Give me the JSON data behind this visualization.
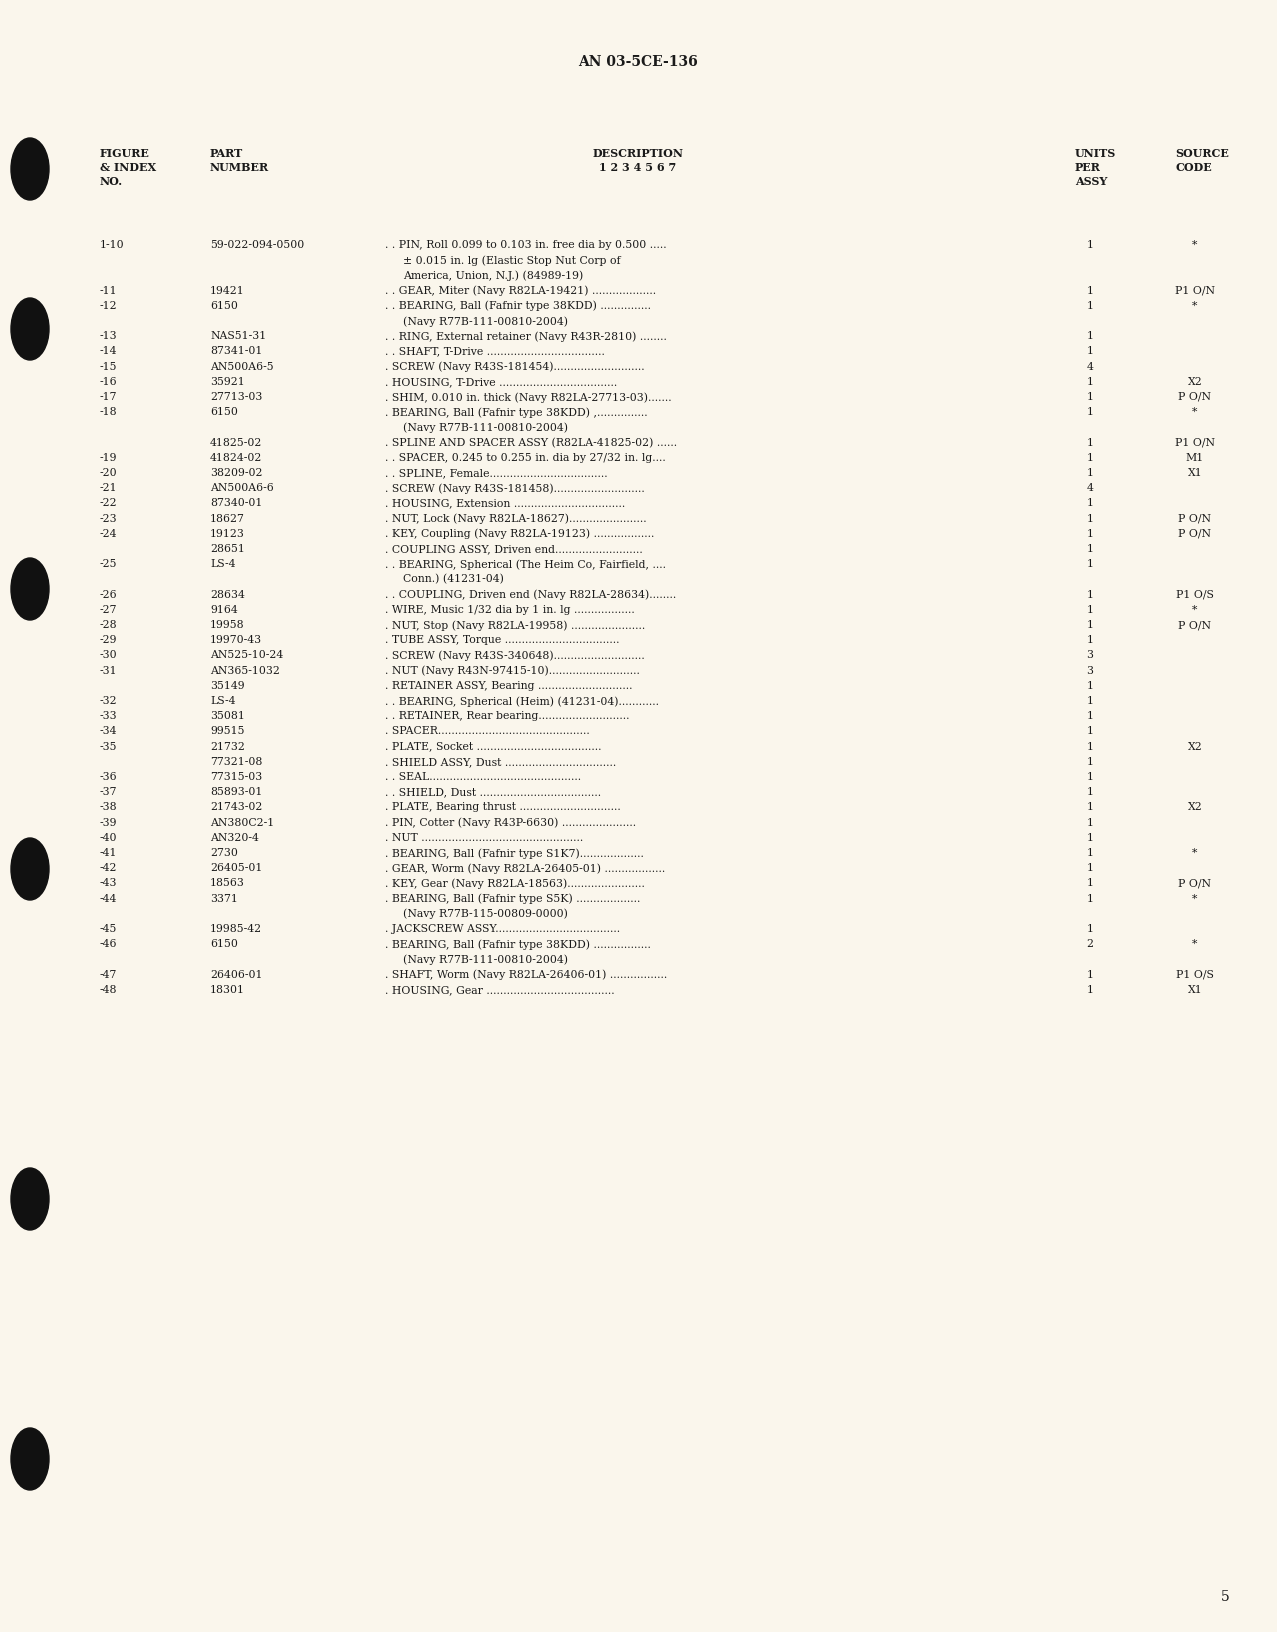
{
  "page_title": "AN 03-5CE-136",
  "page_number": "5",
  "bg_color": "#faf6ec",
  "text_color": "#1a1a1a",
  "rows": [
    {
      "index": "1-10",
      "part": "59-022-094-0500",
      "desc": ". . PIN, Roll 0.099 to 0.103 in. free dia by 0.500 .....",
      "desc2": "  ± 0.015 in. lg (Elastic Stop Nut Corp of",
      "desc3": "  America, Union, N.J.) (84989-19)",
      "units": "1",
      "source": "*"
    },
    {
      "index": "-11",
      "part": "19421",
      "desc": ". . GEAR, Miter (Navy R82LA-19421) ...................",
      "desc2": "",
      "desc3": "",
      "units": "1",
      "source": "P1 O/N"
    },
    {
      "index": "-12",
      "part": "6150",
      "desc": ". . BEARING, Ball (Fafnir type 38KDD) ...............",
      "desc2": "  (Navy R77B-111-00810-2004)",
      "desc3": "",
      "units": "1",
      "source": "*"
    },
    {
      "index": "-13",
      "part": "NAS51-31",
      "desc": ". . RING, External retainer (Navy R43R-2810) ........",
      "desc2": "",
      "desc3": "",
      "units": "1",
      "source": ""
    },
    {
      "index": "-14",
      "part": "87341-01",
      "desc": ". . SHAFT, T-Drive ...................................",
      "desc2": "",
      "desc3": "",
      "units": "1",
      "source": ""
    },
    {
      "index": "-15",
      "part": "AN500A6-5",
      "desc": ". SCREW (Navy R43S-181454)...........................",
      "desc2": "",
      "desc3": "",
      "units": "4",
      "source": ""
    },
    {
      "index": "-16",
      "part": "35921",
      "desc": ". HOUSING, T-Drive ...................................",
      "desc2": "",
      "desc3": "",
      "units": "1",
      "source": "X2"
    },
    {
      "index": "-17",
      "part": "27713-03",
      "desc": ". SHIM, 0.010 in. thick (Navy R82LA-27713-03).......",
      "desc2": "",
      "desc3": "",
      "units": "1",
      "source": "P O/N"
    },
    {
      "index": "-18",
      "part": "6150",
      "desc": ". BEARING, Ball (Fafnir type 38KDD) ,...............",
      "desc2": "  (Navy R77B-111-00810-2004)",
      "desc3": "",
      "units": "1",
      "source": "*"
    },
    {
      "index": "",
      "part": "41825-02",
      "desc": ". SPLINE AND SPACER ASSY (R82LA-41825-02) ......",
      "desc2": "",
      "desc3": "",
      "units": "1",
      "source": "P1 O/N"
    },
    {
      "index": "-19",
      "part": "41824-02",
      "desc": ". . SPACER, 0.245 to 0.255 in. dia by 27/32 in. lg....",
      "desc2": "",
      "desc3": "",
      "units": "1",
      "source": "M1"
    },
    {
      "index": "-20",
      "part": "38209-02",
      "desc": ". . SPLINE, Female...................................",
      "desc2": "",
      "desc3": "",
      "units": "1",
      "source": "X1"
    },
    {
      "index": "-21",
      "part": "AN500A6-6",
      "desc": ". SCREW (Navy R43S-181458)...........................",
      "desc2": "",
      "desc3": "",
      "units": "4",
      "source": ""
    },
    {
      "index": "-22",
      "part": "87340-01",
      "desc": ". HOUSING, Extension .................................",
      "desc2": "",
      "desc3": "",
      "units": "1",
      "source": ""
    },
    {
      "index": "-23",
      "part": "18627",
      "desc": ". NUT, Lock (Navy R82LA-18627).......................",
      "desc2": "",
      "desc3": "",
      "units": "1",
      "source": "P O/N"
    },
    {
      "index": "-24",
      "part": "19123",
      "desc": ". KEY, Coupling (Navy R82LA-19123) ..................",
      "desc2": "",
      "desc3": "",
      "units": "1",
      "source": "P O/N"
    },
    {
      "index": "",
      "part": "28651",
      "desc": ". COUPLING ASSY, Driven end..........................",
      "desc2": "",
      "desc3": "",
      "units": "1",
      "source": ""
    },
    {
      "index": "-25",
      "part": "LS-4",
      "desc": ". . BEARING, Spherical (The Heim Co, Fairfield, ....",
      "desc2": "  Conn.) (41231-04)",
      "desc3": "",
      "units": "1",
      "source": ""
    },
    {
      "index": "-26",
      "part": "28634",
      "desc": ". . COUPLING, Driven end (Navy R82LA-28634)........",
      "desc2": "",
      "desc3": "",
      "units": "1",
      "source": "P1 O/S"
    },
    {
      "index": "-27",
      "part": "9164",
      "desc": ". WIRE, Music 1/32 dia by 1 in. lg ..................",
      "desc2": "",
      "desc3": "",
      "units": "1",
      "source": "*"
    },
    {
      "index": "-28",
      "part": "19958",
      "desc": ". NUT, Stop (Navy R82LA-19958) ......................",
      "desc2": "",
      "desc3": "",
      "units": "1",
      "source": "P O/N"
    },
    {
      "index": "-29",
      "part": "19970-43",
      "desc": ". TUBE ASSY, Torque ..................................",
      "desc2": "",
      "desc3": "",
      "units": "1",
      "source": ""
    },
    {
      "index": "-30",
      "part": "AN525-10-24",
      "desc": ". SCREW (Navy R43S-340648)...........................",
      "desc2": "",
      "desc3": "",
      "units": "3",
      "source": ""
    },
    {
      "index": "-31",
      "part": "AN365-1032",
      "desc": ". NUT (Navy R43N-97415-10)...........................",
      "desc2": "",
      "desc3": "",
      "units": "3",
      "source": ""
    },
    {
      "index": "",
      "part": "35149",
      "desc": ". RETAINER ASSY, Bearing ............................",
      "desc2": "",
      "desc3": "",
      "units": "1",
      "source": ""
    },
    {
      "index": "-32",
      "part": "LS-4",
      "desc": ". . BEARING, Spherical (Heim) (41231-04)............",
      "desc2": "",
      "desc3": "",
      "units": "1",
      "source": ""
    },
    {
      "index": "-33",
      "part": "35081",
      "desc": ". . RETAINER, Rear bearing...........................",
      "desc2": "",
      "desc3": "",
      "units": "1",
      "source": ""
    },
    {
      "index": "-34",
      "part": "99515",
      "desc": ". SPACER.............................................",
      "desc2": "",
      "desc3": "",
      "units": "1",
      "source": ""
    },
    {
      "index": "-35",
      "part": "21732",
      "desc": ". PLATE, Socket .....................................",
      "desc2": "",
      "desc3": "",
      "units": "1",
      "source": "X2"
    },
    {
      "index": "",
      "part": "77321-08",
      "desc": ". SHIELD ASSY, Dust .................................",
      "desc2": "",
      "desc3": "",
      "units": "1",
      "source": ""
    },
    {
      "index": "-36",
      "part": "77315-03",
      "desc": ". . SEAL.............................................",
      "desc2": "",
      "desc3": "",
      "units": "1",
      "source": ""
    },
    {
      "index": "-37",
      "part": "85893-01",
      "desc": ". . SHIELD, Dust ....................................",
      "desc2": "",
      "desc3": "",
      "units": "1",
      "source": ""
    },
    {
      "index": "-38",
      "part": "21743-02",
      "desc": ". PLATE, Bearing thrust ..............................",
      "desc2": "",
      "desc3": "",
      "units": "1",
      "source": "X2"
    },
    {
      "index": "-39",
      "part": "AN380C2-1",
      "desc": ". PIN, Cotter (Navy R43P-6630) ......................",
      "desc2": "",
      "desc3": "",
      "units": "1",
      "source": ""
    },
    {
      "index": "-40",
      "part": "AN320-4",
      "desc": ". NUT ................................................",
      "desc2": "",
      "desc3": "",
      "units": "1",
      "source": ""
    },
    {
      "index": "-41",
      "part": "2730",
      "desc": ". BEARING, Ball (Fafnir type S1K7)...................",
      "desc2": "",
      "desc3": "",
      "units": "1",
      "source": "*"
    },
    {
      "index": "-42",
      "part": "26405-01",
      "desc": ". GEAR, Worm (Navy R82LA-26405-01) ..................",
      "desc2": "",
      "desc3": "",
      "units": "1",
      "source": ""
    },
    {
      "index": "-43",
      "part": "18563",
      "desc": ". KEY, Gear (Navy R82LA-18563).......................",
      "desc2": "",
      "desc3": "",
      "units": "1",
      "source": "P O/N"
    },
    {
      "index": "-44",
      "part": "3371",
      "desc": ". BEARING, Ball (Fafnir type S5K) ...................",
      "desc2": "  (Navy R77B-115-00809-0000)",
      "desc3": "",
      "units": "1",
      "source": "*"
    },
    {
      "index": "-45",
      "part": "19985-42",
      "desc": ". JACKSCREW ASSY.....................................",
      "desc2": "",
      "desc3": "",
      "units": "1",
      "source": ""
    },
    {
      "index": "-46",
      "part": "6150",
      "desc": ". BEARING, Ball (Fafnir type 38KDD) .................",
      "desc2": "  (Navy R77B-111-00810-2004)",
      "desc3": "",
      "units": "2",
      "source": "*"
    },
    {
      "index": "-47",
      "part": "26406-01",
      "desc": ". SHAFT, Worm (Navy R82LA-26406-01) .................",
      "desc2": "",
      "desc3": "",
      "units": "1",
      "source": "P1 O/S"
    },
    {
      "index": "-48",
      "part": "18301",
      "desc": ". HOUSING, Gear ......................................",
      "desc2": "",
      "desc3": "",
      "units": "1",
      "source": "X1"
    }
  ]
}
